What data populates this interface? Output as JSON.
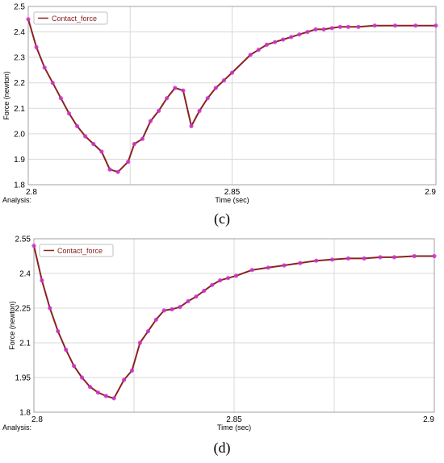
{
  "chart_data": [
    {
      "type": "line",
      "panel_label": "(c)",
      "legend_label": "Contact_force",
      "legend_position": "top-left",
      "xlabel": "Time (sec)",
      "ylabel": "Force (newton)",
      "analysis_label": "Analysis:",
      "xlim": [
        2.8,
        2.9
      ],
      "ylim": [
        1.8,
        2.5
      ],
      "x_ticks": [
        "2.8",
        "2.85",
        "2.9"
      ],
      "y_ticks": [
        "1.8",
        "1.9",
        "2.0",
        "2.1",
        "2.2",
        "2.3",
        "2.4",
        "2.5"
      ],
      "grid": true,
      "line_color": "#8b2222",
      "marker_color": "#cc33cc",
      "series": [
        {
          "x": [
            2.8,
            2.802,
            2.804,
            2.806,
            2.808,
            2.81,
            2.812,
            2.814,
            2.816,
            2.818,
            2.82,
            2.822,
            2.8245,
            2.826,
            2.828,
            2.83,
            2.832,
            2.834,
            2.836,
            2.838,
            2.84,
            2.842,
            2.844,
            2.846,
            2.848,
            2.85,
            2.8545,
            2.8565,
            2.8585,
            2.8605,
            2.8625,
            2.8645,
            2.8665,
            2.8685,
            2.8705,
            2.8725,
            2.8745,
            2.8765,
            2.8785,
            2.881,
            2.885,
            2.89,
            2.895,
            2.9
          ],
          "y": [
            2.45,
            2.34,
            2.26,
            2.2,
            2.14,
            2.08,
            2.03,
            1.99,
            1.96,
            1.93,
            1.86,
            1.85,
            1.89,
            1.96,
            1.98,
            2.05,
            2.09,
            2.14,
            2.18,
            2.17,
            2.03,
            2.09,
            2.14,
            2.18,
            2.21,
            2.24,
            2.31,
            2.33,
            2.35,
            2.36,
            2.37,
            2.38,
            2.39,
            2.4,
            2.41,
            2.41,
            2.415,
            2.42,
            2.42,
            2.42,
            2.425,
            2.425,
            2.425,
            2.425
          ]
        }
      ]
    },
    {
      "type": "line",
      "panel_label": "(d)",
      "legend_label": "Contact_force",
      "legend_position": "top-left",
      "xlabel": "Time (sec)",
      "ylabel": "Force (newton)",
      "analysis_label": "Analysis:",
      "xlim": [
        2.8,
        2.9
      ],
      "ylim": [
        1.8,
        2.55
      ],
      "x_ticks": [
        "2.8",
        "2.85",
        "2.9"
      ],
      "y_ticks": [
        "1.8",
        "1.95",
        "2.1",
        "2.25",
        "2.4",
        "2.55"
      ],
      "grid": true,
      "line_color": "#8b2222",
      "marker_color": "#cc33cc",
      "series": [
        {
          "x": [
            2.8,
            2.802,
            2.804,
            2.806,
            2.808,
            2.81,
            2.812,
            2.814,
            2.816,
            2.818,
            2.82,
            2.8225,
            2.8245,
            2.8265,
            2.8285,
            2.8305,
            2.8325,
            2.8345,
            2.8365,
            2.8385,
            2.8405,
            2.8425,
            2.8445,
            2.8465,
            2.8485,
            2.8505,
            2.8545,
            2.8585,
            2.8625,
            2.8665,
            2.8705,
            2.8745,
            2.8785,
            2.8825,
            2.8865,
            2.89,
            2.895,
            2.9
          ],
          "y": [
            2.52,
            2.37,
            2.25,
            2.15,
            2.07,
            2.0,
            1.95,
            1.91,
            1.885,
            1.87,
            1.86,
            1.94,
            1.98,
            2.1,
            2.15,
            2.2,
            2.24,
            2.245,
            2.255,
            2.28,
            2.3,
            2.325,
            2.35,
            2.37,
            2.38,
            2.39,
            2.415,
            2.425,
            2.435,
            2.445,
            2.455,
            2.46,
            2.465,
            2.465,
            2.47,
            2.47,
            2.475,
            2.475
          ]
        }
      ]
    }
  ]
}
